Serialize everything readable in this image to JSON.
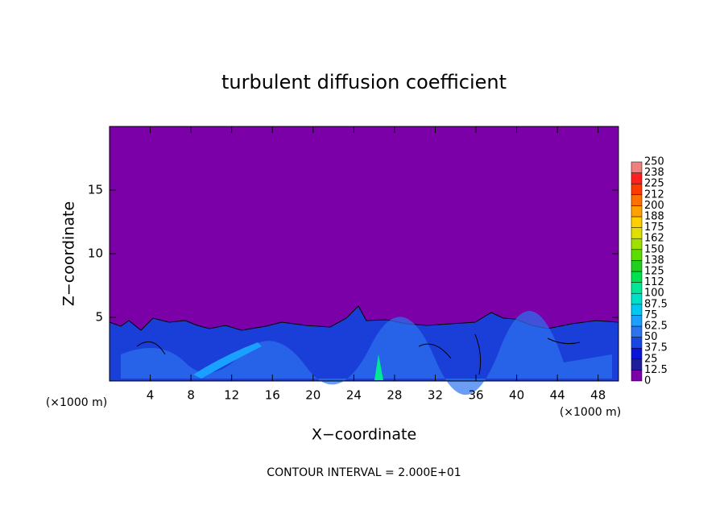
{
  "chart_data": {
    "type": "contour",
    "title": "turbulent diffusion coefficient",
    "x_label": "X−coordinate",
    "y_label": "Z−coordinate",
    "x_unit_labels": [
      "(×1000 m)",
      "(×1000 m)"
    ],
    "annotation": "CONTOUR INTERVAL = 2.000E+01",
    "xlim": [
      0,
      50
    ],
    "ylim": [
      0,
      20
    ],
    "xticks": [
      4,
      8,
      12,
      16,
      20,
      24,
      28,
      32,
      36,
      40,
      44,
      48
    ],
    "yticks": [
      5,
      10,
      15
    ],
    "colorbar": {
      "levels": [
        0,
        12.5,
        25,
        37.5,
        50,
        62.5,
        75,
        87.5,
        100,
        {
          "value": 112.5,
          "label": "112"
        },
        125,
        {
          "value": 137.5,
          "label": "138"
        },
        150,
        {
          "value": 162.5,
          "label": "162"
        },
        175,
        {
          "value": 187.5,
          "label": "188"
        },
        200,
        {
          "value": 212.5,
          "label": "212"
        },
        225,
        {
          "value": 237.5,
          "label": "238"
        },
        250
      ],
      "colors": [
        "#7b00a8",
        "#1e1e9a",
        "#0a14d8",
        "#1a46e4",
        "#2c74f0",
        "#1aa0ff",
        "#00c8f0",
        "#00e0c8",
        "#00e896",
        "#00e050",
        "#20d020",
        "#5cdc00",
        "#a0e000",
        "#e0e000",
        "#ffd000",
        "#ffa000",
        "#ff7000",
        "#ff3a00",
        "#ff2020",
        "#f08080"
      ]
    }
  }
}
